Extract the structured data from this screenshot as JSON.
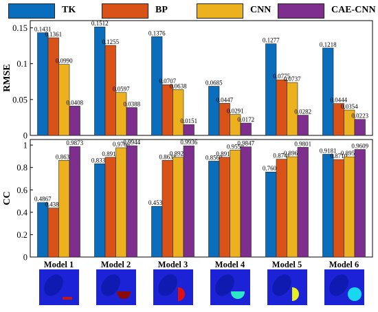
{
  "legend": [
    {
      "name": "TK",
      "color": "#0a6ebd"
    },
    {
      "name": "BP",
      "color": "#d95319"
    },
    {
      "name": "CNN",
      "color": "#edb120"
    },
    {
      "name": "CAE-CNN",
      "color": "#7e2f8e"
    }
  ],
  "chart_data": [
    {
      "type": "bar",
      "ylabel": "RMSE",
      "ylim": [
        0,
        0.16
      ],
      "yticks": [
        "0",
        "0.05",
        "0.1",
        "0.15"
      ],
      "categories": [
        "Model 1",
        "Model 2",
        "Model 3",
        "Model 4",
        "Model 5",
        "Model 6"
      ],
      "series": [
        {
          "name": "TK",
          "values": [
            0.1431,
            0.1512,
            0.1376,
            0.0685,
            0.1277,
            0.1218
          ],
          "labels": [
            "0.1431",
            "0.1512",
            "0.1376",
            "0.0685",
            "0.1277",
            "0.1218"
          ]
        },
        {
          "name": "BP",
          "values": [
            0.1361,
            0.1255,
            0.0707,
            0.0447,
            0.0775,
            0.0444
          ],
          "labels": [
            "0.1361",
            "0.1255",
            "0.0707",
            "0.0447",
            "0.0775",
            "0.0444"
          ]
        },
        {
          "name": "CNN",
          "values": [
            0.099,
            0.0597,
            0.0638,
            0.0291,
            0.0737,
            0.0354
          ],
          "labels": [
            "0.0990",
            "0.0597",
            "0.0638",
            "0.0291",
            "0.0737",
            "0.0354"
          ]
        },
        {
          "name": "CAE-CNN",
          "values": [
            0.0408,
            0.0388,
            0.0151,
            0.0172,
            0.0282,
            0.0223
          ],
          "labels": [
            "0.0408",
            "0.0388",
            "0.0151",
            "0.0172",
            "0.0282",
            "0.0223"
          ]
        }
      ]
    },
    {
      "type": "bar",
      "ylabel": "CC",
      "ylim": [
        0,
        1.05
      ],
      "yticks": [
        "0",
        "0.2",
        "0.4",
        "0.6",
        "0.8",
        "1"
      ],
      "categories": [
        "Model 1",
        "Model 2",
        "Model 3",
        "Model 4",
        "Model 5",
        "Model 6"
      ],
      "series": [
        {
          "name": "TK",
          "values": [
            0.4867,
            0.8335,
            0.453,
            0.8569,
            0.76,
            0.9181
          ],
          "labels": [
            "0.4867",
            "0.8335",
            "0.4530",
            "0.8569",
            "0.7600",
            "0.9181"
          ]
        },
        {
          "name": "BP",
          "values": [
            0.4382,
            0.8913,
            0.8634,
            0.8913,
            0.8741,
            0.871
          ],
          "labels": [
            "0.4382",
            "0.8913",
            "0.8634",
            "0.8913",
            "0.8741",
            "0.8710"
          ]
        },
        {
          "name": "CNN",
          "values": [
            0.8636,
            0.9766,
            0.892,
            0.955,
            0.8962,
            0.8954
          ],
          "labels": [
            "0.8636",
            "0.9766",
            "0.8920",
            "0.9550",
            "0.8962",
            "0.8954"
          ]
        },
        {
          "name": "CAE-CNN",
          "values": [
            0.9873,
            0.9944,
            0.9936,
            0.9847,
            0.9801,
            0.9609
          ],
          "labels": [
            "0.9873",
            "0.9944",
            "0.9936",
            "0.9847",
            "0.9801",
            "0.9609"
          ]
        }
      ]
    }
  ],
  "thumbnails": [
    {
      "model": "Model 1",
      "anomaly": "small-bar",
      "color": "#c01818"
    },
    {
      "model": "Model 2",
      "anomaly": "half-disc",
      "color": "#8a0a0a"
    },
    {
      "model": "Model 3",
      "anomaly": "half-disc-vertical",
      "color": "#e01010"
    },
    {
      "model": "Model 4",
      "anomaly": "half-disc",
      "color": "#2ee6c8"
    },
    {
      "model": "Model 5",
      "anomaly": "half-disc-vertical",
      "color": "#e8f020"
    },
    {
      "model": "Model 6",
      "anomaly": "disc",
      "color": "#18d8f0"
    }
  ]
}
